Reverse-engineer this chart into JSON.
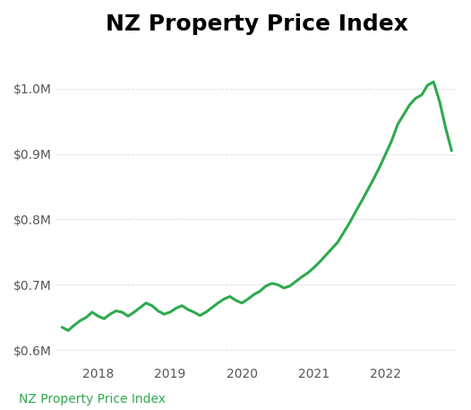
{
  "title": "NZ Property Price Index",
  "title_fontsize": 18,
  "title_fontweight": "bold",
  "line_color": "#2eaa4e",
  "line_width": 2.2,
  "background_color": "#ffffff",
  "footer_text": "NZ Property Price Index",
  "footer_color": "#2eaa4e",
  "footer_fontsize": 10,
  "ylim": [
    580000,
    1060000
  ],
  "yticks": [
    600000,
    700000,
    800000,
    900000,
    1000000
  ],
  "ytick_labels": [
    "$0.6M",
    "$0.7M",
    "$0.8M",
    "$0.9M",
    "$1.0M"
  ],
  "xtick_labels": [
    "2018",
    "2019",
    "2020",
    "2021",
    "2022"
  ],
  "grid_color": "#cccccc",
  "grid_linestyle": "dotted",
  "x": [
    0,
    1,
    2,
    3,
    4,
    5,
    6,
    7,
    8,
    9,
    10,
    11,
    12,
    13,
    14,
    15,
    16,
    17,
    18,
    19,
    20,
    21,
    22,
    23,
    24,
    25,
    26,
    27,
    28,
    29,
    30,
    31,
    32,
    33,
    34,
    35,
    36,
    37,
    38,
    39,
    40,
    41,
    42,
    43,
    44,
    45,
    46,
    47,
    48,
    49,
    50,
    51,
    52,
    53,
    54,
    55,
    56,
    57,
    58,
    59,
    60,
    61,
    62,
    63,
    64,
    65
  ],
  "y": [
    635000,
    630000,
    638000,
    645000,
    650000,
    658000,
    652000,
    648000,
    655000,
    660000,
    658000,
    652000,
    658000,
    665000,
    672000,
    668000,
    660000,
    655000,
    658000,
    664000,
    668000,
    662000,
    658000,
    653000,
    658000,
    665000,
    672000,
    678000,
    682000,
    676000,
    672000,
    678000,
    685000,
    690000,
    698000,
    702000,
    700000,
    695000,
    698000,
    705000,
    712000,
    718000,
    726000,
    735000,
    745000,
    755000,
    765000,
    780000,
    795000,
    812000,
    828000,
    845000,
    862000,
    880000,
    900000,
    920000,
    945000,
    960000,
    975000,
    985000,
    990000,
    1005000,
    1010000,
    980000,
    940000,
    905000
  ],
  "x_tick_positions": [
    6,
    18,
    30,
    42,
    54
  ],
  "x_tick_labels": [
    "2018",
    "2019",
    "2020",
    "2021",
    "2022"
  ]
}
